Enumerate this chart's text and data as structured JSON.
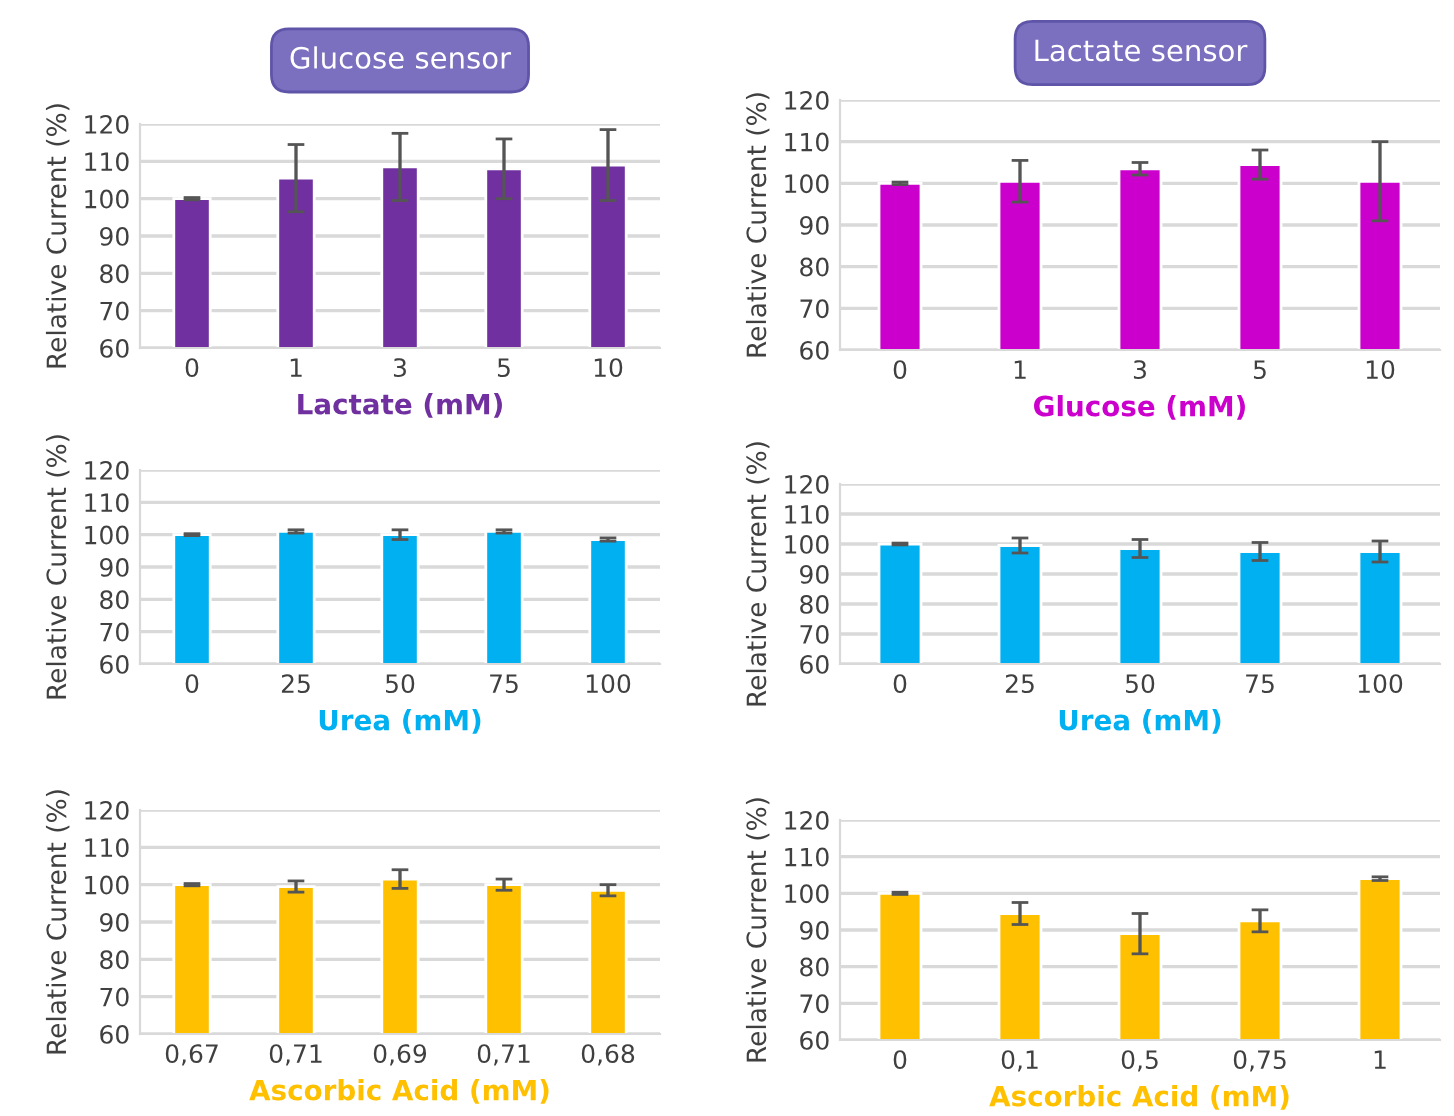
{
  "chart_data": [
    {
      "type": "bar",
      "title": "Glucose sensor",
      "xlabel": "Lactate (mM)",
      "ylabel": "Relative Current (%)",
      "categories": [
        "0",
        "1",
        "3",
        "5",
        "10"
      ],
      "values": [
        100,
        105.5,
        108.5,
        108,
        109
      ],
      "errors": [
        0.3,
        9,
        9,
        8,
        9.5
      ],
      "color": "#7030a0",
      "ylim": [
        60,
        120
      ],
      "yticks": [
        60,
        70,
        80,
        90,
        100,
        110,
        120
      ],
      "grid": "y"
    },
    {
      "type": "bar",
      "title": "Lactate sensor",
      "xlabel": "Glucose (mM)",
      "ylabel": "Relative Current (%)",
      "categories": [
        "0",
        "1",
        "3",
        "5",
        "10"
      ],
      "values": [
        100,
        100.5,
        103.5,
        104.5,
        100.5
      ],
      "errors": [
        0.3,
        5,
        1.5,
        3.5,
        9.5
      ],
      "color": "#cc00cc",
      "ylim": [
        60,
        120
      ],
      "yticks": [
        60,
        70,
        80,
        90,
        100,
        110,
        120
      ],
      "grid": "y"
    },
    {
      "type": "bar",
      "xlabel": "Urea (mM)",
      "ylabel": "Relative Current (%)",
      "categories": [
        "0",
        "25",
        "50",
        "75",
        "100"
      ],
      "values": [
        100,
        101,
        100,
        101,
        98.5
      ],
      "errors": [
        0.3,
        0.5,
        1.5,
        0.5,
        0.5
      ],
      "color": "#00b0f0",
      "ylim": [
        60,
        120
      ],
      "yticks": [
        60,
        70,
        80,
        90,
        100,
        110,
        120
      ],
      "grid": "y"
    },
    {
      "type": "bar",
      "xlabel": "Urea (mM)",
      "ylabel": "Relative Current (%)",
      "categories": [
        "0",
        "25",
        "50",
        "75",
        "100"
      ],
      "values": [
        100,
        99.5,
        98.5,
        97.5,
        97.5
      ],
      "errors": [
        0.3,
        2.5,
        3,
        3,
        3.5
      ],
      "color": "#00b0f0",
      "ylim": [
        60,
        120
      ],
      "yticks": [
        60,
        70,
        80,
        90,
        100,
        110,
        120
      ],
      "grid": "y"
    },
    {
      "type": "bar",
      "xlabel": "Ascorbic Acid (mM)",
      "ylabel": "Relative Current (%)",
      "categories": [
        "0,67",
        "0,71",
        "0,69",
        "0,71",
        "0,68"
      ],
      "values": [
        100,
        99.5,
        101.5,
        100,
        98.5
      ],
      "errors": [
        0.3,
        1.5,
        2.5,
        1.5,
        1.5
      ],
      "color": "#ffc000",
      "ylim": [
        60,
        120
      ],
      "yticks": [
        60,
        70,
        80,
        90,
        100,
        110,
        120
      ],
      "grid": "y"
    },
    {
      "type": "bar",
      "xlabel": "Ascorbic Acid (mM)",
      "ylabel": "Relative Current (%)",
      "categories": [
        "0",
        "0,1",
        "0,5",
        "0,75",
        "1"
      ],
      "values": [
        100,
        94.5,
        89,
        92.5,
        104
      ],
      "errors": [
        0.3,
        3,
        5.5,
        3,
        0.5
      ],
      "color": "#ffc000",
      "ylim": [
        60,
        120
      ],
      "yticks": [
        60,
        70,
        80,
        90,
        100,
        110,
        120
      ],
      "grid": "y"
    }
  ]
}
